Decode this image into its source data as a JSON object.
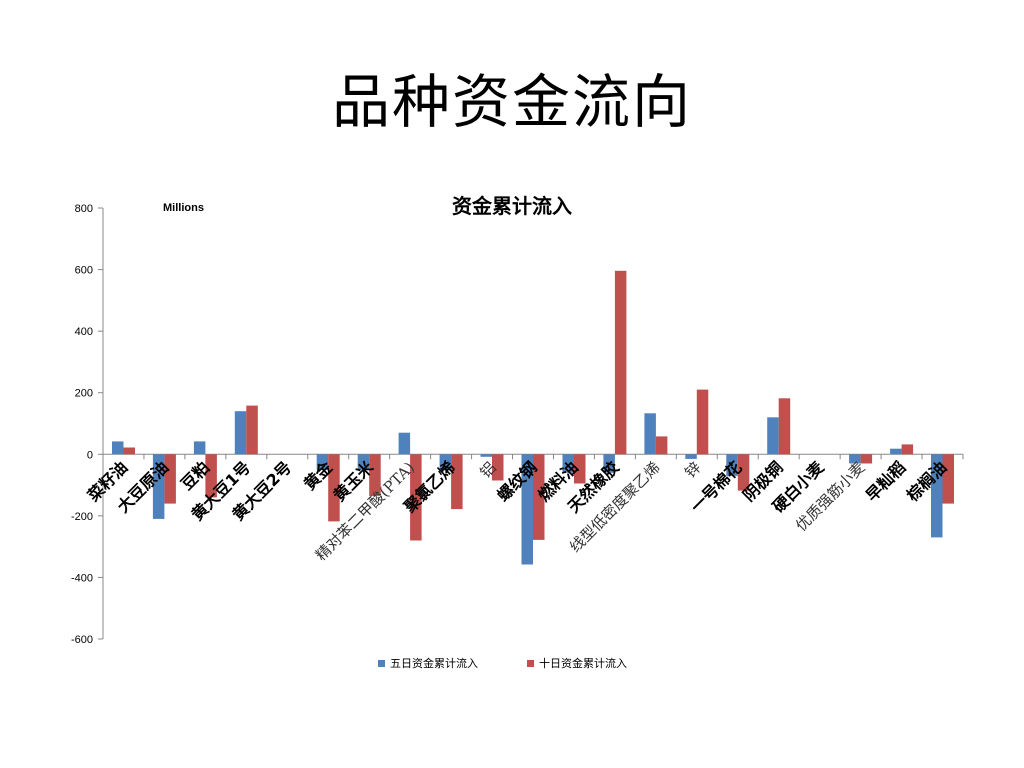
{
  "slide": {
    "title": "品种资金流向"
  },
  "chart_data": {
    "type": "bar",
    "title": "资金累计流入",
    "units_label": "Millions",
    "ylim": [
      -600,
      800
    ],
    "yticks": [
      800,
      600,
      400,
      200,
      0,
      -200,
      -400,
      -600
    ],
    "legend_position": "bottom",
    "grid": false,
    "categories": [
      "菜籽油",
      "大豆原油",
      "豆粕",
      "黄大豆1号",
      "黄大豆2号",
      "黄金",
      "黄玉米",
      "精对苯二甲酸(PTA)",
      "聚氯乙烯",
      "铝",
      "螺纹钢",
      "燃料油",
      "天然橡胶",
      "线型低密度聚乙烯",
      "锌",
      "一号棉花",
      "阴极铜",
      "硬白小麦",
      "优质强筋小麦",
      "早籼稻",
      "棕榈油"
    ],
    "series": [
      {
        "name": "五日资金累计流入",
        "color": "#4f81bd",
        "values": [
          42,
          -210,
          42,
          140,
          0,
          -50,
          -50,
          70,
          -52,
          -8,
          -358,
          -60,
          -60,
          133,
          -15,
          -70,
          120,
          0,
          -30,
          18,
          -270
        ]
      },
      {
        "name": "十日资金累计流入",
        "color": "#c0504d",
        "values": [
          22,
          -160,
          -140,
          158,
          0,
          -218,
          -135,
          -280,
          -178,
          -85,
          -278,
          -95,
          596,
          58,
          210,
          -118,
          182,
          0,
          -30,
          32,
          -160
        ]
      }
    ]
  },
  "label_styles": [
    "bold",
    "bold",
    "bold",
    "bold",
    "bold",
    "bold",
    "bold",
    "thin",
    "bold",
    "thin",
    "bold",
    "bold",
    "bold",
    "thin",
    "thin",
    "bold",
    "bold",
    "bold",
    "thin",
    "bold",
    "bold"
  ]
}
